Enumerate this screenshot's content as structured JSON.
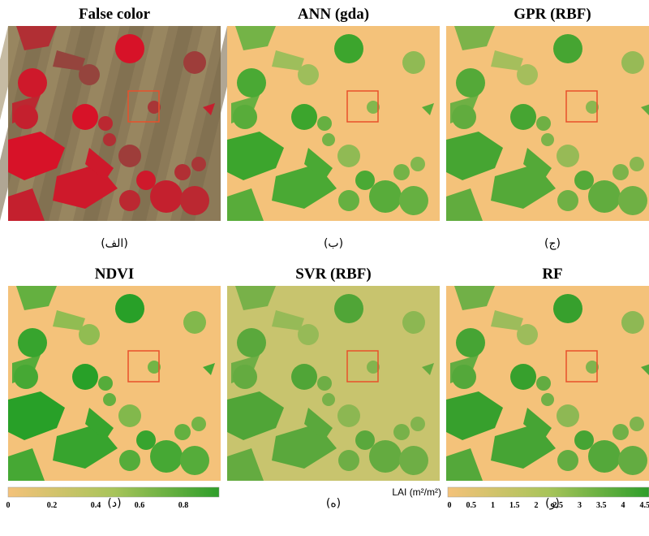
{
  "panels": [
    {
      "title": "False color",
      "caption": "(الف)"
    },
    {
      "title": "ANN (gda)",
      "caption": "(ب)"
    },
    {
      "title": "GPR (RBF)",
      "caption": "(ج)"
    },
    {
      "title": "NDVI",
      "caption": "(د)"
    },
    {
      "title": "SVR (RBF)",
      "caption": "(ه)"
    },
    {
      "title": "RF",
      "caption": "(و)"
    }
  ],
  "colorbars": [
    {
      "ticks": [
        0,
        0.2,
        0.4,
        0.6,
        0.8
      ]
    },
    {
      "label": "LAI (m²/m²)",
      "ticks": [
        0,
        0.5,
        1,
        1.5,
        2,
        2.5,
        3,
        3.5,
        4,
        4.5
      ]
    }
  ]
}
